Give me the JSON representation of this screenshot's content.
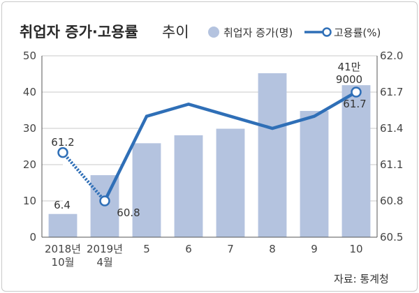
{
  "title": {
    "main": "취업자 증가·고용률",
    "sub": "추이"
  },
  "legend": {
    "bar_label": "취업자 증가(명)",
    "line_label": "고용률(%)"
  },
  "source": "자료: 통계청",
  "colors": {
    "bar": "#b4c3df",
    "line": "#2f6fb7",
    "grid": "#c9c9c9",
    "text": "#333333"
  },
  "chart_data": {
    "type": "bar",
    "categories": [
      "2018년 10월",
      "2019년 4월",
      "5",
      "6",
      "7",
      "8",
      "9",
      "10"
    ],
    "category_lines": [
      [
        "2018년",
        "10월"
      ],
      [
        "2019년",
        "4월"
      ],
      [
        "5"
      ],
      [
        "6"
      ],
      [
        "7"
      ],
      [
        "8"
      ],
      [
        "9"
      ],
      [
        "10"
      ]
    ],
    "series": [
      {
        "name": "취업자 증가(명)",
        "type": "bar",
        "axis": "left",
        "values": [
          6.4,
          17.1,
          25.9,
          28.1,
          29.9,
          45.2,
          34.8,
          41.9
        ]
      },
      {
        "name": "고용률(%)",
        "type": "line",
        "axis": "right",
        "values": [
          61.2,
          60.8,
          61.5,
          61.6,
          61.5,
          61.4,
          61.5,
          61.7
        ]
      }
    ],
    "y_left": {
      "lim": [
        0,
        50
      ],
      "ticks": [
        "0",
        "10",
        "20",
        "30",
        "40",
        "50"
      ]
    },
    "y_right": {
      "lim": [
        60.5,
        62.0
      ],
      "ticks": [
        "60.5",
        "60.8",
        "61.1",
        "61.4",
        "61.7",
        "62.0"
      ]
    },
    "data_labels": [
      {
        "text": "61.2"
      },
      {
        "text": "6.4"
      },
      {
        "text": "60.8"
      },
      {
        "text": "41만"
      },
      {
        "text": "9000"
      },
      {
        "text": "61.7"
      }
    ],
    "grid": true,
    "legend_position": "top-right",
    "dashed_segment": [
      0,
      1
    ]
  }
}
